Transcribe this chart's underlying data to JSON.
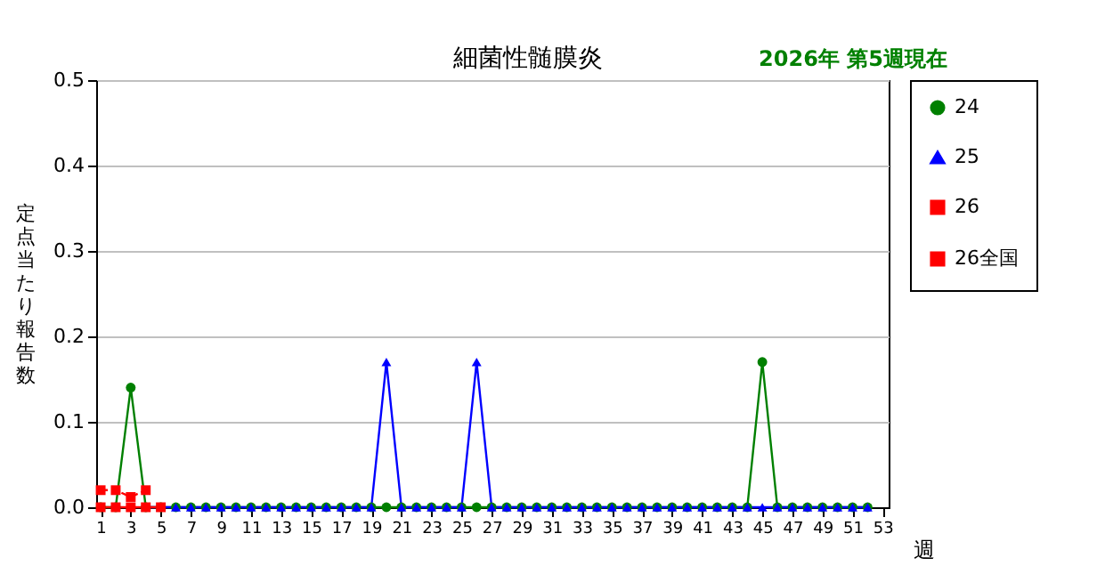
{
  "chart_data": {
    "type": "line",
    "title": "細菌性髄膜炎",
    "subtitle": "2026年 第5週現在",
    "xlabel": "週",
    "ylabel": "定点当たり報告数",
    "xlim": [
      0.7,
      53.4
    ],
    "xticks": [
      1,
      3,
      5,
      7,
      9,
      11,
      13,
      15,
      17,
      19,
      21,
      23,
      25,
      27,
      29,
      31,
      33,
      35,
      37,
      39,
      41,
      43,
      45,
      47,
      49,
      51,
      53
    ],
    "ylim": [
      0,
      0.5
    ],
    "yticks": [
      {
        "value": 0,
        "label": "0.0"
      },
      0.1,
      0.2,
      0.3,
      0.4,
      0.5
    ],
    "grid": "y",
    "legend": "right",
    "series": [
      {
        "name": "24",
        "color": "#008000",
        "marker": "circle",
        "line_style": "solid",
        "x": [
          1,
          2,
          3,
          4,
          5,
          6,
          7,
          8,
          9,
          10,
          11,
          12,
          13,
          14,
          15,
          16,
          17,
          18,
          19,
          20,
          21,
          22,
          23,
          24,
          25,
          26,
          27,
          28,
          29,
          30,
          31,
          32,
          33,
          34,
          35,
          36,
          37,
          38,
          39,
          40,
          41,
          42,
          43,
          44,
          45,
          46,
          47,
          48,
          49,
          50,
          51,
          52
        ],
        "values": [
          0,
          0,
          0.14,
          0,
          0,
          0,
          0,
          0,
          0,
          0,
          0,
          0,
          0,
          0,
          0,
          0,
          0,
          0,
          0,
          0,
          0,
          0,
          0,
          0,
          0,
          0,
          0,
          0,
          0,
          0,
          0,
          0,
          0,
          0,
          0,
          0,
          0,
          0,
          0,
          0,
          0,
          0,
          0,
          0,
          0.17,
          0,
          0,
          0,
          0,
          0,
          0,
          0
        ]
      },
      {
        "name": "25",
        "color": "#0000ff",
        "marker": "triangle",
        "line_style": "solid",
        "x": [
          4,
          5,
          6,
          7,
          8,
          9,
          10,
          11,
          12,
          13,
          14,
          15,
          16,
          17,
          18,
          19,
          20,
          21,
          22,
          23,
          24,
          25,
          26,
          27,
          28,
          29,
          30,
          31,
          32,
          33,
          34,
          35,
          36,
          37,
          38,
          39,
          40,
          41,
          42,
          43,
          44,
          45,
          46,
          47,
          48,
          49,
          50,
          51,
          52
        ],
        "values": [
          0,
          0,
          0,
          0,
          0,
          0,
          0,
          0,
          0,
          0,
          0,
          0,
          0,
          0,
          0,
          0,
          0.17,
          0,
          0,
          0,
          0,
          0,
          0.17,
          0,
          0,
          0,
          0,
          0,
          0,
          0,
          0,
          0,
          0,
          0,
          0,
          0,
          0,
          0,
          0,
          0,
          0,
          0,
          0,
          0,
          0,
          0,
          0,
          0,
          0
        ]
      },
      {
        "name": "26",
        "color": "#ff0000",
        "marker": "square",
        "line_style": "solid",
        "x": [
          1,
          2,
          3,
          4,
          5
        ],
        "values": [
          0,
          0,
          0,
          0,
          0
        ]
      },
      {
        "name": "26全国",
        "color": "#ff0000",
        "marker": "square",
        "line_style": "dashed",
        "x": [
          1,
          2,
          3,
          4
        ],
        "values": [
          0.02,
          0.02,
          0.012,
          0.02
        ]
      }
    ]
  }
}
